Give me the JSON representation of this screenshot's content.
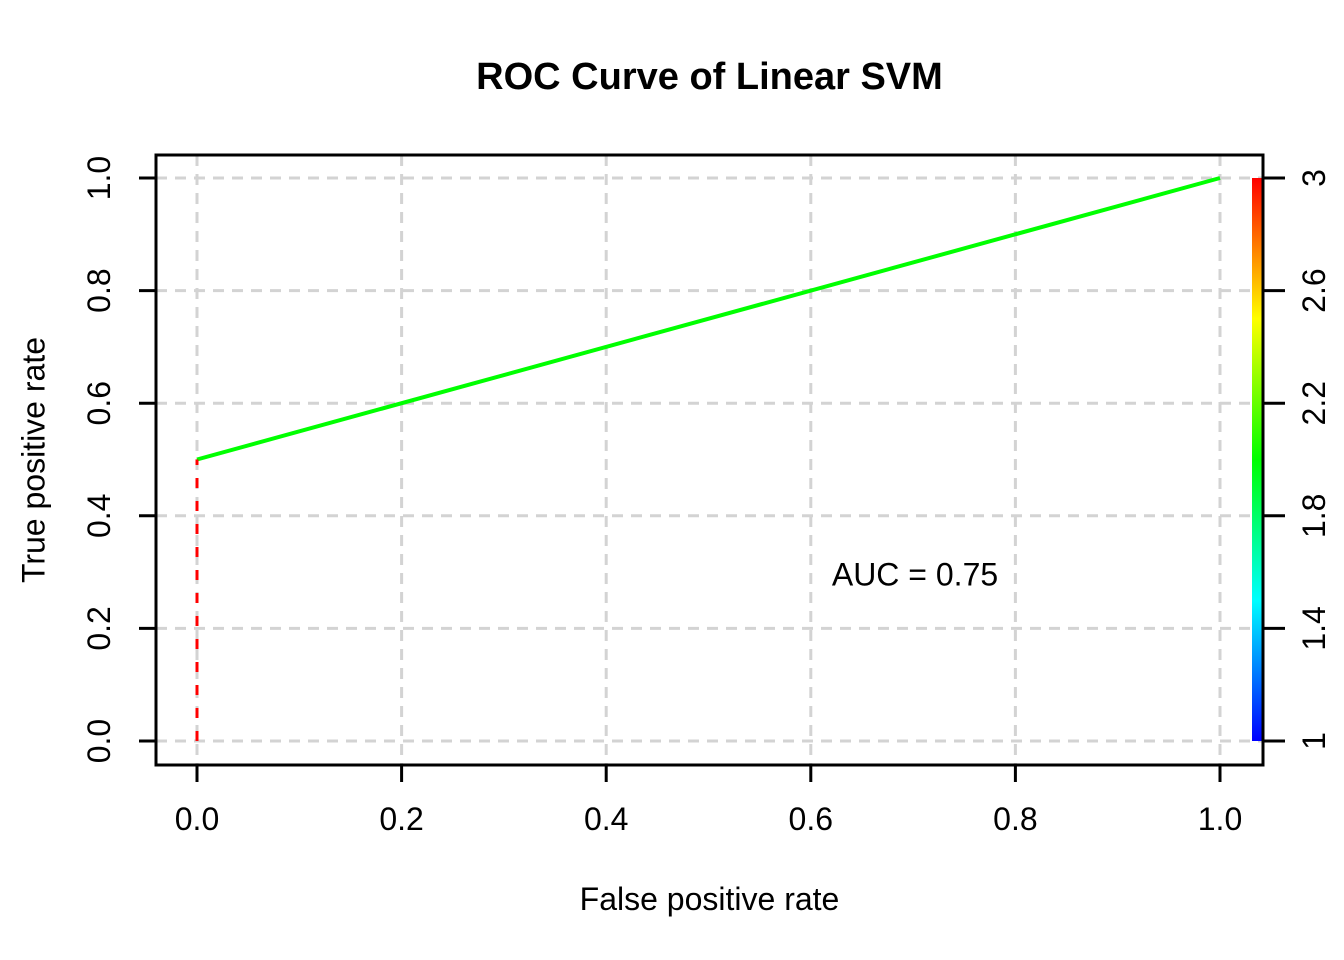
{
  "chart_data": {
    "type": "line",
    "title": "ROC Curve of Linear SVM",
    "xlabel": "False positive rate",
    "ylabel": "True positive rate",
    "xlim": [
      0,
      1
    ],
    "ylim": [
      0,
      1
    ],
    "grid": {
      "show": true,
      "style": "dashed",
      "color": "#D3D3D3"
    },
    "box_color": "#000000",
    "background_color": "#FFFFFF",
    "x_ticks": {
      "values": [
        0,
        0.2,
        0.4,
        0.6,
        0.8,
        1.0
      ],
      "labels": [
        "0.0",
        "0.2",
        "0.4",
        "0.6",
        "0.8",
        "1.0"
      ]
    },
    "y_ticks": {
      "values": [
        0,
        0.2,
        0.4,
        0.6,
        0.8,
        1.0
      ],
      "labels": [
        "0.0",
        "0.2",
        "0.4",
        "0.6",
        "0.8",
        "1.0"
      ]
    },
    "series": [
      {
        "name": "roc-curve-main-segment",
        "color": "#00FF00",
        "line_style": "solid",
        "points": [
          [
            0,
            0.5
          ],
          [
            1.0,
            1.0
          ]
        ]
      },
      {
        "name": "roc-curve-vertical-segment",
        "color": "#FF0000",
        "line_style": "dashed",
        "points": [
          [
            0,
            0
          ],
          [
            0,
            0.5
          ]
        ]
      }
    ],
    "annotation": {
      "text": "AUC = 0.75",
      "x": 0.7,
      "y": 0.3
    },
    "colorbar": {
      "min": 1,
      "max": 3,
      "tick_values": [
        1,
        1.4,
        1.8,
        2.2,
        2.6,
        3
      ],
      "tick_labels": [
        "1",
        "1.4",
        "1.8",
        "2.2",
        "2.6",
        "3"
      ],
      "gradient_top_to_bottom": [
        "#FF0000",
        "#FFFF00",
        "#00FF00",
        "#00FFFF",
        "#0000FF"
      ]
    }
  }
}
